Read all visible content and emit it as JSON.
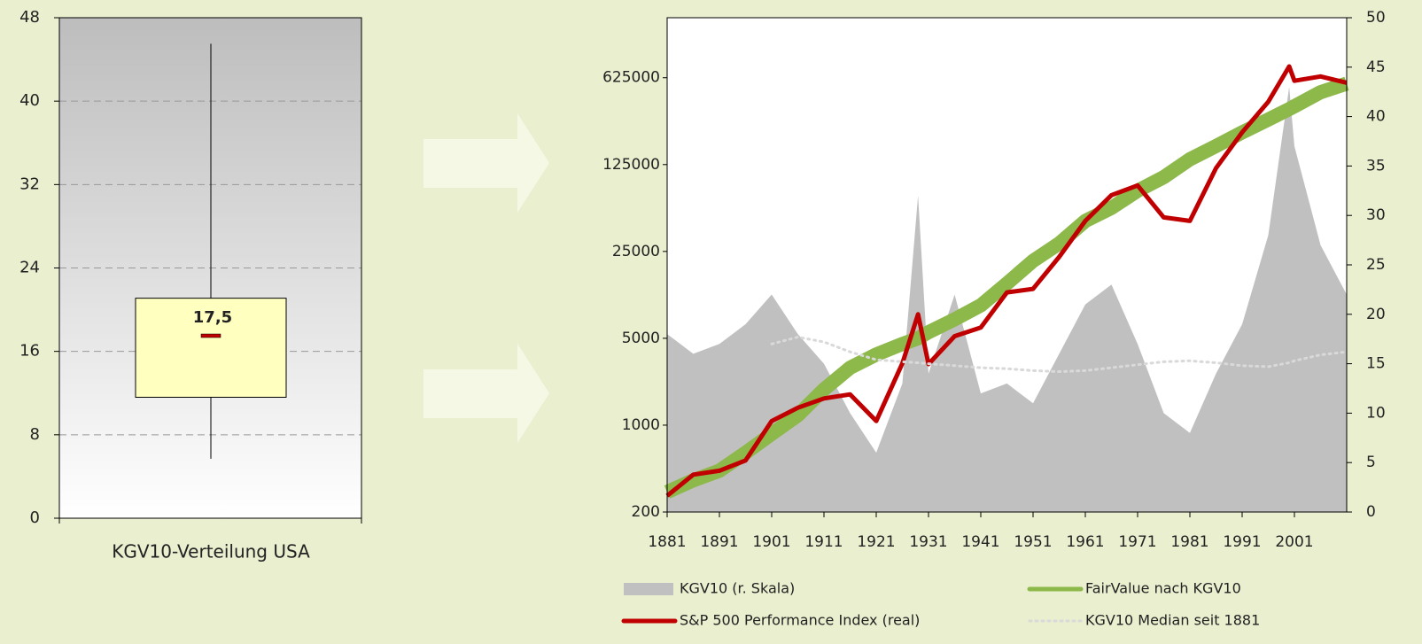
{
  "chart_data": [
    {
      "type": "box",
      "categories": [
        "KGV10-Verteilung USA"
      ],
      "stats": {
        "min": 5.7,
        "q1": 11.6,
        "median": 17.5,
        "q3": 21.1,
        "max": 45.5
      },
      "value_labels": {
        "median": "17,5"
      },
      "ylim": [
        0,
        48
      ],
      "yticks": [
        0,
        8,
        16,
        24,
        32,
        40,
        48
      ],
      "grid": true,
      "box_color": "#ffffc0",
      "median_color": "#c00000"
    },
    {
      "type": "combo",
      "log_y": true,
      "xlim": [
        1881,
        2011
      ],
      "xticks": [
        1881,
        1891,
        1901,
        1911,
        1921,
        1931,
        1941,
        1951,
        1961,
        1971,
        1981,
        1991,
        2001
      ],
      "ylim": [
        200,
        1900000
      ],
      "yticks": [
        200,
        1000,
        5000,
        25000,
        125000,
        625000
      ],
      "y2lim": [
        0,
        50
      ],
      "y2ticks": [
        0,
        5,
        10,
        15,
        20,
        25,
        30,
        35,
        40,
        45,
        50
      ],
      "x": [
        1881,
        1886,
        1891,
        1896,
        1901,
        1906,
        1911,
        1916,
        1921,
        1926,
        1929,
        1931,
        1936,
        1941,
        1946,
        1951,
        1956,
        1961,
        1966,
        1971,
        1976,
        1981,
        1986,
        1991,
        1996,
        2000,
        2001,
        2006,
        2011
      ],
      "series": [
        {
          "name": "KGV10 (r. Skala)",
          "color": "#c0c0c0",
          "style": "area",
          "axis": "y2",
          "values": [
            18,
            16,
            17,
            19,
            22,
            18,
            15,
            10,
            6,
            13,
            32,
            14,
            22,
            12,
            13,
            11,
            16,
            21,
            23,
            17,
            10,
            8,
            14,
            19,
            28,
            43,
            37,
            27,
            22
          ]
        },
        {
          "name": "FairValue nach KGV10",
          "color": "#8db84a",
          "style": "band",
          "values": [
            290,
            360,
            430,
            600,
            850,
            1200,
            1940,
            2900,
            3700,
            4500,
            5000,
            5600,
            7100,
            9200,
            13800,
            21000,
            29000,
            44000,
            56000,
            77000,
            99000,
            138000,
            176000,
            227000,
            288000,
            350000,
            368000,
            478000,
            560000
          ]
        },
        {
          "name": "S&P 500 Performance Index (real)",
          "color": "#c00000",
          "style": "line",
          "values": [
            270,
            400,
            430,
            520,
            1080,
            1380,
            1640,
            1770,
            1080,
            3140,
            7800,
            3100,
            5200,
            6100,
            11700,
            12500,
            22600,
            44000,
            71000,
            85000,
            47000,
            44000,
            117000,
            227000,
            400000,
            770000,
            590000,
            640000,
            570000
          ]
        },
        {
          "name": "KGV10 Median seit 1881",
          "color": "#d9d9d9",
          "style": "dotted",
          "axis": "y2",
          "values": [
            null,
            null,
            null,
            null,
            17,
            17.7,
            17.2,
            16.2,
            15.4,
            15.2,
            15.1,
            15.0,
            14.8,
            14.6,
            14.5,
            14.3,
            14.2,
            14.3,
            14.6,
            14.9,
            15.2,
            15.3,
            15.1,
            14.8,
            14.7,
            15.1,
            15.3,
            15.9,
            16.2
          ]
        }
      ]
    }
  ]
}
